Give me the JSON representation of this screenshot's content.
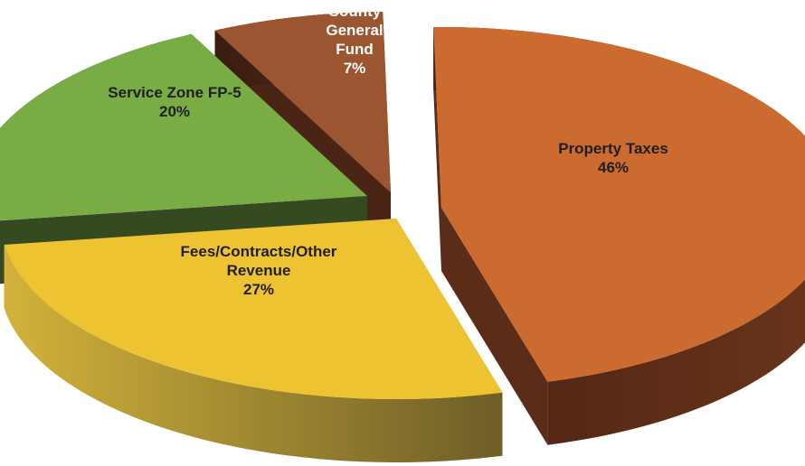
{
  "chart_data": {
    "type": "pie",
    "title": "",
    "slices": [
      {
        "name": "Property Taxes",
        "value": 46,
        "label_lines": [
          "Property Taxes",
          "46%"
        ],
        "color": "#cb6b2f",
        "side_color": "#5b2c18"
      },
      {
        "name": "Fees/Contracts/Other Revenue",
        "value": 27,
        "label_lines": [
          "Fees/Contracts/Other",
          "Revenue",
          "27%"
        ],
        "color": "#eec332",
        "side_color": "#8a7a2a"
      },
      {
        "name": "Service Zone FP-5",
        "value": 20,
        "label_lines": [
          "Service Zone FP-5",
          "20%"
        ],
        "color": "#7aac46",
        "side_color": "#364a22"
      },
      {
        "name": "County General Fund",
        "value": 7,
        "label_lines": [
          "County",
          "General",
          "Fund",
          "7%"
        ],
        "color": "#9b5531",
        "side_color": "#4a2414"
      }
    ],
    "label_color": "#1f1f1f",
    "label_color_small": "#ffffff"
  }
}
